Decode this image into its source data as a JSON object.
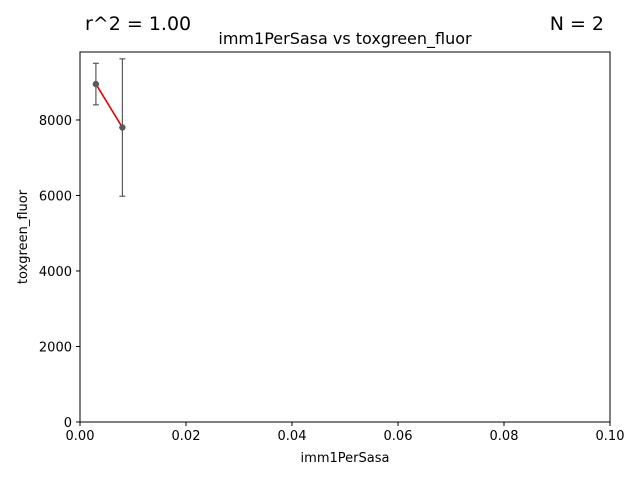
{
  "chart_data": {
    "type": "scatter",
    "title": "imm1PerSasa vs toxgreen_fluor",
    "xlabel": "imm1PerSasa",
    "ylabel": "toxgreen_fluor",
    "xlim": [
      0,
      0.1
    ],
    "ylim": [
      0,
      9800
    ],
    "x_ticks": [
      0,
      0.02,
      0.04,
      0.06,
      0.08,
      0.1
    ],
    "x_tick_labels": [
      "0.00",
      "0.02",
      "0.04",
      "0.06",
      "0.08",
      "0.10"
    ],
    "y_ticks": [
      0,
      2000,
      4000,
      6000,
      8000
    ],
    "y_tick_labels": [
      "0",
      "2000",
      "4000",
      "6000",
      "8000"
    ],
    "grid": false,
    "points": [
      {
        "x": 0.003,
        "y": 8950,
        "err_low": 8400,
        "err_high": 9500
      },
      {
        "x": 0.008,
        "y": 7800,
        "err_low": 5980,
        "err_high": 9620
      }
    ],
    "fit_line": {
      "x": [
        0.003,
        0.008
      ],
      "y": [
        8950,
        7800
      ]
    },
    "annotations": {
      "r2": "r^2 = 1.00",
      "n": "N = 2"
    },
    "colors": {
      "point": "#5a5a5a",
      "errorbar": "#5a5a5a",
      "fit": "#e00000",
      "axes": "#000000"
    }
  }
}
